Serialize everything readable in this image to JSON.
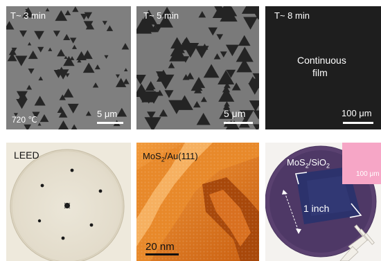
{
  "panels": [
    {
      "id": "sem-3min",
      "time_label": "T~ 3 min",
      "temperature": "720 ℃",
      "scale": "5 μm"
    },
    {
      "id": "sem-5min",
      "time_label": "T~ 5 min",
      "scale": "5 μm"
    },
    {
      "id": "sem-8min",
      "time_label": "T~ 8 min",
      "caption_line1": "Continuous",
      "caption_line2": "film",
      "scale": "100 μm"
    },
    {
      "id": "leed",
      "label": "LEED"
    },
    {
      "id": "stm",
      "label_main": "MoS",
      "label_sub": "2",
      "label_rest": "/Au(111)",
      "scale": "20 nm"
    },
    {
      "id": "wafer",
      "label_main": "MoS",
      "label_sub": "2",
      "label_mid": "/SiO",
      "label_sub2": "2",
      "size": "1 inch",
      "inset_scale": "100 μm"
    }
  ],
  "colors": {
    "sem_background": "#7d7d7d",
    "sem_island": "#262626",
    "sem_film": "#1f1f1f",
    "leed_background": "#e8e2d2",
    "stm_orange": "#e07a1c",
    "wafer_purple": "#4a3560",
    "wafer_film": "#2a2f6a",
    "inset_pink": "#f4a3c4"
  }
}
